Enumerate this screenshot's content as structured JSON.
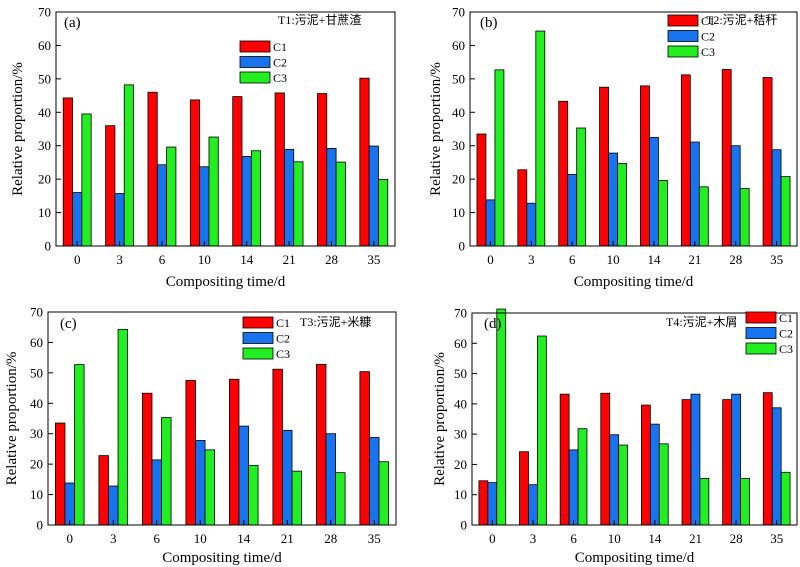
{
  "colors": {
    "C1": "#ff0000",
    "C2": "#1874ee",
    "C3": "#22ee22"
  },
  "chart_data": [
    {
      "type": "bar",
      "panel_label": "(a)",
      "condition": "T1:污泥+甘蔗渣",
      "xlabel": "Compositing time/d",
      "ylabel": "Relative proportion/%",
      "ylim": [
        0,
        70
      ],
      "yticks": [
        0,
        10,
        20,
        30,
        40,
        50,
        60,
        70
      ],
      "categories": [
        "0",
        "3",
        "6",
        "10",
        "14",
        "21",
        "28",
        "35"
      ],
      "legend_position": "upper-middle",
      "series": [
        {
          "name": "C1",
          "values": [
            44.3,
            36.0,
            46.0,
            43.7,
            44.7,
            45.8,
            45.6,
            50.2
          ]
        },
        {
          "name": "C2",
          "values": [
            16.0,
            15.7,
            24.3,
            23.7,
            26.8,
            28.9,
            29.2,
            29.9
          ]
        },
        {
          "name": "C3",
          "values": [
            39.5,
            48.2,
            29.6,
            32.6,
            28.5,
            25.2,
            25.1,
            19.9
          ]
        }
      ]
    },
    {
      "type": "bar",
      "panel_label": "(b)",
      "condition": "T2:污泥+秸秆",
      "xlabel": "Compositing time/d",
      "ylabel": "Relative proportion/%",
      "ylim": [
        0,
        70
      ],
      "yticks": [
        0,
        10,
        20,
        30,
        40,
        50,
        60,
        70
      ],
      "categories": [
        "0",
        "3",
        "6",
        "10",
        "14",
        "21",
        "28",
        "35"
      ],
      "legend_position": "top-right",
      "series": [
        {
          "name": "C1",
          "values": [
            33.5,
            22.8,
            43.3,
            47.5,
            47.9,
            51.2,
            52.8,
            50.4
          ]
        },
        {
          "name": "C2",
          "values": [
            13.8,
            12.8,
            21.4,
            27.8,
            32.5,
            31.1,
            30.0,
            28.8
          ]
        },
        {
          "name": "C3",
          "values": [
            52.7,
            64.3,
            35.3,
            24.7,
            19.6,
            17.7,
            17.2,
            20.8
          ]
        }
      ]
    },
    {
      "type": "bar",
      "panel_label": "(c)",
      "condition": "T3:污泥+米糠",
      "xlabel": "Compositing time/d",
      "ylabel": "Relative proportion/%",
      "ylim": [
        0,
        70
      ],
      "yticks": [
        0,
        10,
        20,
        30,
        40,
        50,
        60,
        70
      ],
      "categories": [
        "0",
        "3",
        "6",
        "10",
        "14",
        "21",
        "28",
        "35"
      ],
      "legend_position": "upper-middle",
      "series": [
        {
          "name": "C1",
          "values": [
            33.5,
            22.8,
            43.3,
            47.5,
            47.9,
            51.2,
            52.8,
            50.4
          ]
        },
        {
          "name": "C2",
          "values": [
            13.8,
            12.8,
            21.4,
            27.8,
            32.5,
            31.1,
            30.0,
            28.8
          ]
        },
        {
          "name": "C3",
          "values": [
            52.7,
            64.3,
            35.3,
            24.7,
            19.6,
            17.7,
            17.2,
            20.8
          ]
        }
      ]
    },
    {
      "type": "bar",
      "panel_label": "(d)",
      "condition": "T4:污泥+木屑",
      "xlabel": "Compositing time/d",
      "ylabel": "Relative proportion/%",
      "ylim": [
        0,
        70
      ],
      "yticks": [
        0,
        10,
        20,
        30,
        40,
        50,
        60,
        70
      ],
      "categories": [
        "0",
        "3",
        "6",
        "10",
        "14",
        "21",
        "28",
        "35"
      ],
      "legend_position": "top-right",
      "series": [
        {
          "name": "C1",
          "values": [
            14.6,
            24.2,
            43.2,
            43.5,
            39.6,
            41.4,
            41.4,
            43.7
          ]
        },
        {
          "name": "C2",
          "values": [
            14.0,
            13.3,
            24.8,
            29.8,
            33.3,
            43.2,
            43.2,
            38.7
          ]
        },
        {
          "name": "C3",
          "values": [
            71.3,
            62.4,
            31.8,
            26.4,
            26.8,
            15.4,
            15.4,
            17.4
          ]
        }
      ]
    }
  ]
}
